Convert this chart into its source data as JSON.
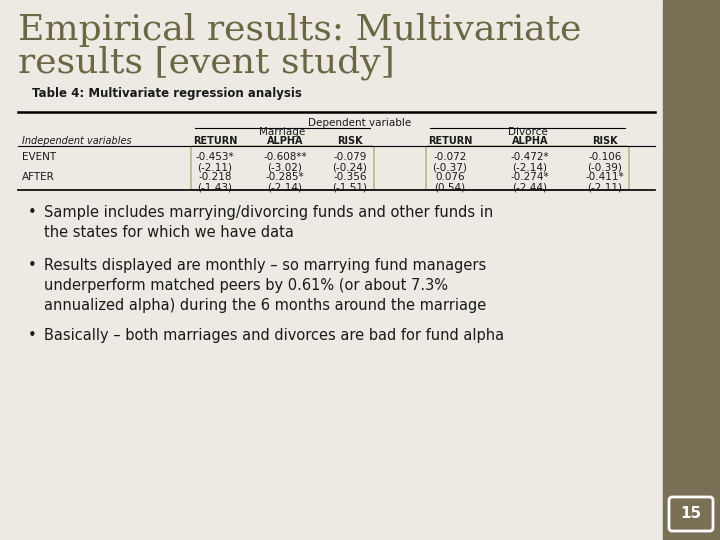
{
  "title_line1": "Empirical results: Multivariate",
  "title_line2": "results [event study]",
  "subtitle": "Table 4: Multivariate regression analysis",
  "title_color": "#6b6744",
  "bg_color": "#edeae4",
  "right_panel_color": "#7a7055",
  "slide_number": "15",
  "table_header1": "Dependent variable",
  "table_subheader1": "Marriage",
  "table_subheader2": "Divorce",
  "col_headers": [
    "RETURN",
    "ALPHA",
    "RISK",
    "RETURN",
    "ALPHA",
    "RISK"
  ],
  "row_label0": "Independent variables",
  "row_labels": [
    "EVENT",
    "AFTER"
  ],
  "box_color": "#b5a97a",
  "table_data": {
    "EVENT_marriage": [
      "-0.453*",
      "-0.608**",
      "-0.079"
    ],
    "EVENT_marriage_t": [
      "(-2.11)",
      "(-3.02)",
      "(-0.24)"
    ],
    "EVENT_divorce": [
      "-0.072",
      "-0.472*",
      "-0.106"
    ],
    "EVENT_divorce_t": [
      "(-0.37)",
      "(-2.14)",
      "(-0.39)"
    ],
    "AFTER_marriage": [
      "-0.218",
      "-0.285*",
      "-0.356"
    ],
    "AFTER_marriage_t": [
      "(-1.43)",
      "(-2.14)",
      "(-1.51)"
    ],
    "AFTER_divorce": [
      "0.076",
      "-0.274*",
      "-0.411*"
    ],
    "AFTER_divorce_t": [
      "(0.54)",
      "(-2.44)",
      "(-2.11)"
    ]
  },
  "bullets": [
    "Sample includes marrying/divorcing funds and other funds in\nthe states for which we have data",
    "Results displayed are monthly – so marrying fund managers\nunderperform matched peers by 0.61% (or about 7.3%\nannualized alpha) during the 6 months around the marriage",
    "Basically – both marriages and divorces are bad for fund alpha"
  ],
  "text_color": "#1a1a1a"
}
